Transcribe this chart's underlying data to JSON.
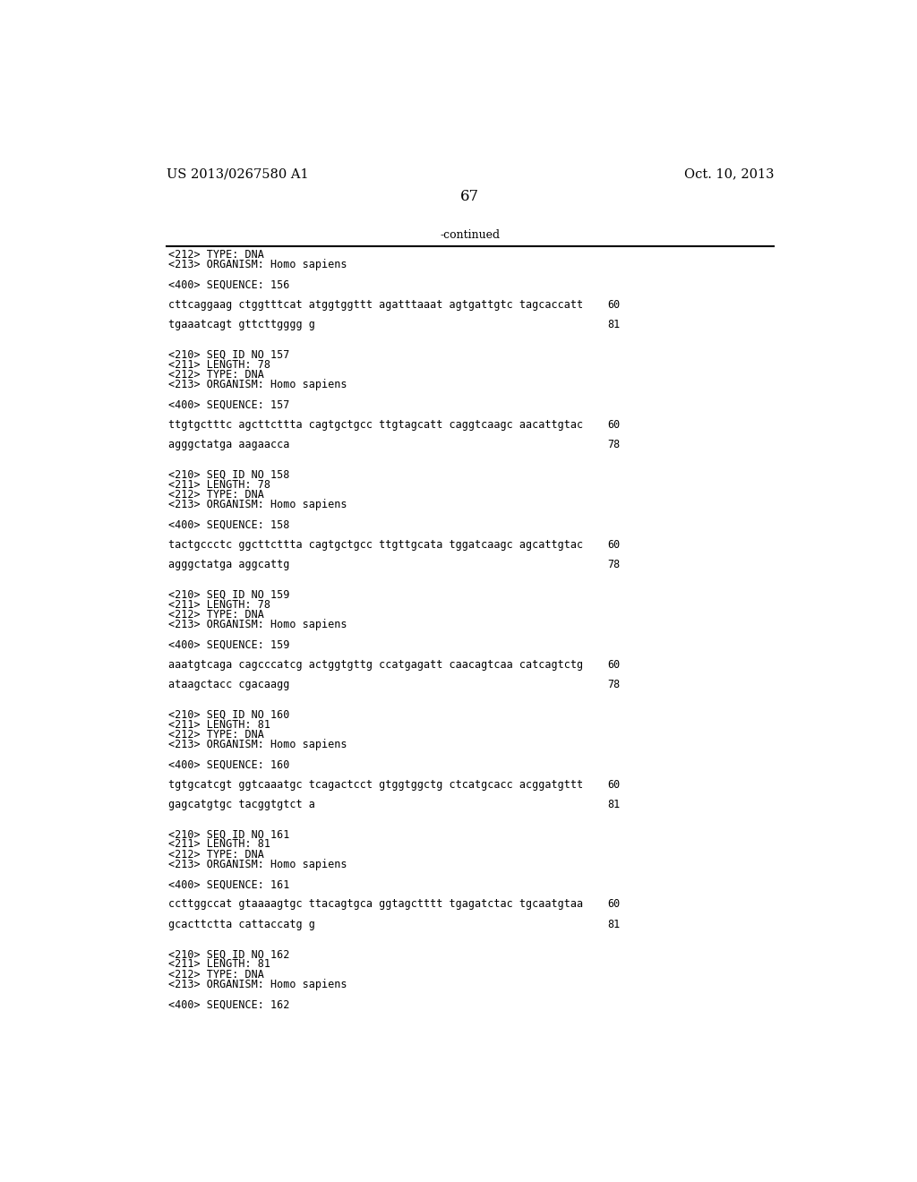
{
  "header_left": "US 2013/0267580 A1",
  "header_right": "Oct. 10, 2013",
  "page_number": "67",
  "continued_label": "-continued",
  "background_color": "#ffffff",
  "text_color": "#000000",
  "header_fontsize": 10.5,
  "page_num_fontsize": 12,
  "continued_fontsize": 9,
  "mono_fontsize": 8.5,
  "content": [
    {
      "text": "<212> TYPE: DNA",
      "type": "meta"
    },
    {
      "text": "<213> ORGANISM: Homo sapiens",
      "type": "meta"
    },
    {
      "text": "",
      "type": "blank"
    },
    {
      "text": "<400> SEQUENCE: 156",
      "type": "meta"
    },
    {
      "text": "",
      "type": "blank"
    },
    {
      "text": "cttcaggaag ctggtttcat atggtggttt agatttaaat agtgattgtc tagcaccatt",
      "type": "seq",
      "num": "60"
    },
    {
      "text": "",
      "type": "blank"
    },
    {
      "text": "tgaaatcagt gttcttgggg g",
      "type": "seq",
      "num": "81"
    },
    {
      "text": "",
      "type": "blank"
    },
    {
      "text": "",
      "type": "blank"
    },
    {
      "text": "<210> SEQ ID NO 157",
      "type": "meta"
    },
    {
      "text": "<211> LENGTH: 78",
      "type": "meta"
    },
    {
      "text": "<212> TYPE: DNA",
      "type": "meta"
    },
    {
      "text": "<213> ORGANISM: Homo sapiens",
      "type": "meta"
    },
    {
      "text": "",
      "type": "blank"
    },
    {
      "text": "<400> SEQUENCE: 157",
      "type": "meta"
    },
    {
      "text": "",
      "type": "blank"
    },
    {
      "text": "ttgtgctttc agcttcttta cagtgctgcc ttgtagcatt caggtcaagc aacattgtac",
      "type": "seq",
      "num": "60"
    },
    {
      "text": "",
      "type": "blank"
    },
    {
      "text": "agggctatga aagaacca",
      "type": "seq",
      "num": "78"
    },
    {
      "text": "",
      "type": "blank"
    },
    {
      "text": "",
      "type": "blank"
    },
    {
      "text": "<210> SEQ ID NO 158",
      "type": "meta"
    },
    {
      "text": "<211> LENGTH: 78",
      "type": "meta"
    },
    {
      "text": "<212> TYPE: DNA",
      "type": "meta"
    },
    {
      "text": "<213> ORGANISM: Homo sapiens",
      "type": "meta"
    },
    {
      "text": "",
      "type": "blank"
    },
    {
      "text": "<400> SEQUENCE: 158",
      "type": "meta"
    },
    {
      "text": "",
      "type": "blank"
    },
    {
      "text": "tactgccctc ggcttcttta cagtgctgcc ttgttgcata tggatcaagc agcattgtac",
      "type": "seq",
      "num": "60"
    },
    {
      "text": "",
      "type": "blank"
    },
    {
      "text": "agggctatga aggcattg",
      "type": "seq",
      "num": "78"
    },
    {
      "text": "",
      "type": "blank"
    },
    {
      "text": "",
      "type": "blank"
    },
    {
      "text": "<210> SEQ ID NO 159",
      "type": "meta"
    },
    {
      "text": "<211> LENGTH: 78",
      "type": "meta"
    },
    {
      "text": "<212> TYPE: DNA",
      "type": "meta"
    },
    {
      "text": "<213> ORGANISM: Homo sapiens",
      "type": "meta"
    },
    {
      "text": "",
      "type": "blank"
    },
    {
      "text": "<400> SEQUENCE: 159",
      "type": "meta"
    },
    {
      "text": "",
      "type": "blank"
    },
    {
      "text": "aaatgtcaga cagcccatcg actggtgttg ccatgagatt caacagtcaa catcagtctg",
      "type": "seq",
      "num": "60"
    },
    {
      "text": "",
      "type": "blank"
    },
    {
      "text": "ataagctacc cgacaagg",
      "type": "seq",
      "num": "78"
    },
    {
      "text": "",
      "type": "blank"
    },
    {
      "text": "",
      "type": "blank"
    },
    {
      "text": "<210> SEQ ID NO 160",
      "type": "meta"
    },
    {
      "text": "<211> LENGTH: 81",
      "type": "meta"
    },
    {
      "text": "<212> TYPE: DNA",
      "type": "meta"
    },
    {
      "text": "<213> ORGANISM: Homo sapiens",
      "type": "meta"
    },
    {
      "text": "",
      "type": "blank"
    },
    {
      "text": "<400> SEQUENCE: 160",
      "type": "meta"
    },
    {
      "text": "",
      "type": "blank"
    },
    {
      "text": "tgtgcatcgt ggtcaaatgc tcagactcct gtggtggctg ctcatgcacc acggatgttt",
      "type": "seq",
      "num": "60"
    },
    {
      "text": "",
      "type": "blank"
    },
    {
      "text": "gagcatgtgc tacggtgtct a",
      "type": "seq",
      "num": "81"
    },
    {
      "text": "",
      "type": "blank"
    },
    {
      "text": "",
      "type": "blank"
    },
    {
      "text": "<210> SEQ ID NO 161",
      "type": "meta"
    },
    {
      "text": "<211> LENGTH: 81",
      "type": "meta"
    },
    {
      "text": "<212> TYPE: DNA",
      "type": "meta"
    },
    {
      "text": "<213> ORGANISM: Homo sapiens",
      "type": "meta"
    },
    {
      "text": "",
      "type": "blank"
    },
    {
      "text": "<400> SEQUENCE: 161",
      "type": "meta"
    },
    {
      "text": "",
      "type": "blank"
    },
    {
      "text": "ccttggccat gtaaaagtgc ttacagtgca ggtagctttt tgagatctac tgcaatgtaa",
      "type": "seq",
      "num": "60"
    },
    {
      "text": "",
      "type": "blank"
    },
    {
      "text": "gcacttctta cattaccatg g",
      "type": "seq",
      "num": "81"
    },
    {
      "text": "",
      "type": "blank"
    },
    {
      "text": "",
      "type": "blank"
    },
    {
      "text": "<210> SEQ ID NO 162",
      "type": "meta"
    },
    {
      "text": "<211> LENGTH: 81",
      "type": "meta"
    },
    {
      "text": "<212> TYPE: DNA",
      "type": "meta"
    },
    {
      "text": "<213> ORGANISM: Homo sapiens",
      "type": "meta"
    },
    {
      "text": "",
      "type": "blank"
    },
    {
      "text": "<400> SEQUENCE: 162",
      "type": "meta"
    }
  ]
}
